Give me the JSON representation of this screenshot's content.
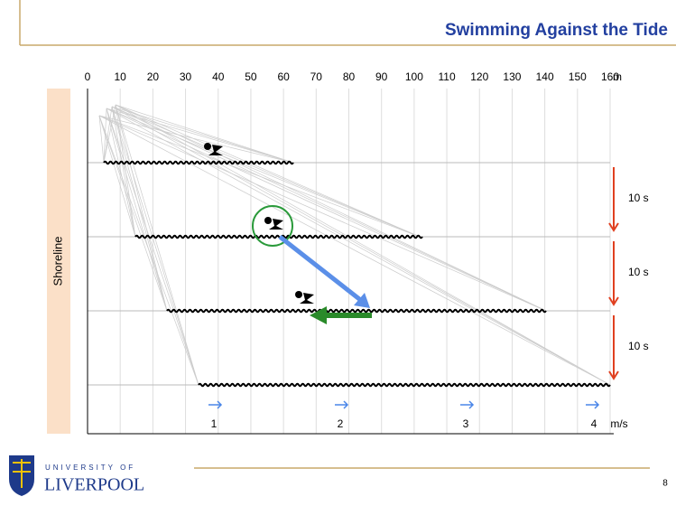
{
  "header": {
    "title": "Swimming Against the Tide"
  },
  "diagram": {
    "axis": {
      "ticks": [
        0,
        10,
        20,
        30,
        40,
        50,
        60,
        70,
        80,
        90,
        100,
        110,
        120,
        130,
        140,
        150,
        160
      ],
      "unit": "m"
    },
    "shore_label": "Shoreline",
    "intervals": [
      "10 s",
      "10 s",
      "10 s"
    ],
    "speeds": [
      "1",
      "2",
      "3",
      "4"
    ],
    "speed_unit": "m/s"
  },
  "footer": {
    "university_of": "UNIVERSITY OF",
    "liverpool": "LIVERPOOL",
    "page": "8"
  }
}
